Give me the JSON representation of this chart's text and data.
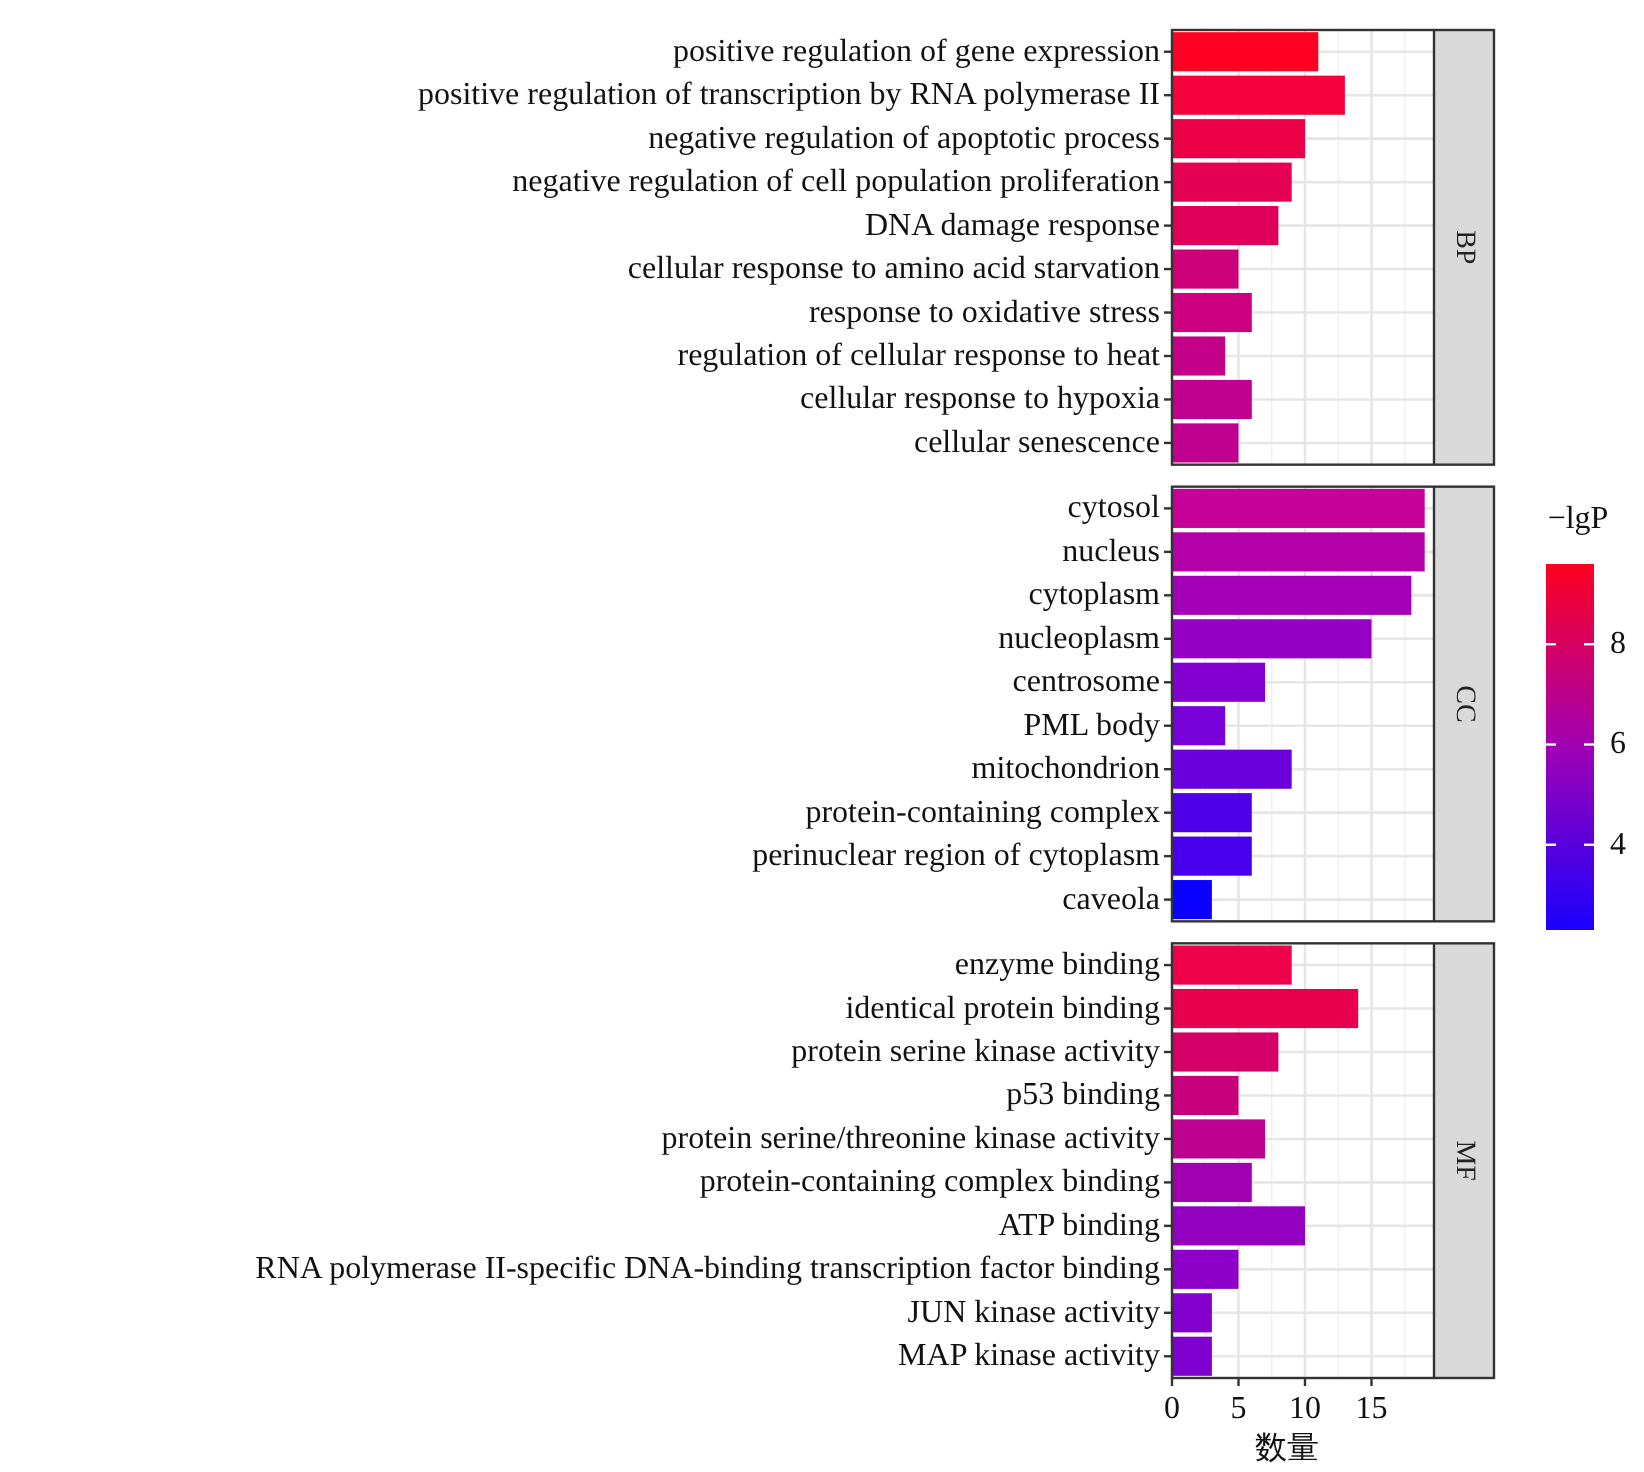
{
  "chart_data": [
    {
      "type": "bar",
      "orientation": "horizontal",
      "y2label": "BP",
      "categories": [
        "positive regulation of gene expression",
        "positive regulation of transcription by RNA polymerase II",
        "negative regulation of apoptotic process",
        "negative regulation of cell population proliferation",
        "DNA damage response",
        "cellular response to amino acid starvation",
        "response to oxidative stress",
        "regulation of cellular response to heat",
        "cellular response to hypoxia",
        "cellular senescence"
      ],
      "values": [
        11,
        13,
        10,
        9,
        8,
        5,
        6,
        4,
        6,
        5
      ],
      "colors": [
        "#ff0022",
        "#f5003a",
        "#ec0048",
        "#e40052",
        "#e0005a",
        "#cc0078",
        "#cc0080",
        "#c40088",
        "#c00090",
        "#c00090"
      ],
      "xlim": [
        0,
        19.7
      ],
      "xticks": [
        0,
        5,
        10,
        15
      ],
      "grid": true,
      "tick_labels": "y"
    },
    {
      "type": "bar",
      "orientation": "horizontal",
      "y2label": "CC",
      "categories": [
        "cytosol",
        "nucleus",
        "cytoplasm",
        "nucleoplasm",
        "centrosome",
        "PML body",
        "mitochondrion",
        "protein-containing complex",
        "perinuclear region of cytoplasm",
        "caveola"
      ],
      "values": [
        19,
        19,
        18,
        15,
        7,
        4,
        9,
        6,
        6,
        3
      ],
      "colors": [
        "#c8009a",
        "#b400a8",
        "#a400b8",
        "#9600c4",
        "#8200d0",
        "#7800d8",
        "#6c00dc",
        "#5000e8",
        "#4800ec",
        "#0a00ff"
      ],
      "xlim": [
        0,
        19.7
      ],
      "xticks": [
        0,
        5,
        10,
        15
      ],
      "grid": true,
      "tick_labels": "y",
      "clabel": "−lgP",
      "clim": [
        2.3,
        9.6
      ],
      "cticks": [
        4,
        6,
        8
      ]
    },
    {
      "type": "bar",
      "orientation": "horizontal",
      "y2label": "MF",
      "categories": [
        "enzyme binding",
        "identical protein binding",
        "protein serine kinase activity",
        "p53 binding",
        "protein serine/threonine kinase activity",
        "protein-containing complex binding",
        "ATP binding",
        "RNA polymerase II-specific DNA-binding transcription factor binding",
        "JUN kinase activity",
        "MAP kinase activity"
      ],
      "values": [
        9,
        14,
        8,
        5,
        7,
        6,
        10,
        5,
        3,
        3
      ],
      "colors": [
        "#ee004a",
        "#e8004e",
        "#d40068",
        "#c8007c",
        "#bc0090",
        "#a000b0",
        "#9400c0",
        "#8e00c8",
        "#8400cc",
        "#8000d0"
      ],
      "xlim": [
        0,
        19.7
      ],
      "xticks": [
        0,
        5,
        10,
        15
      ],
      "grid": true,
      "xlabel": "数量"
    }
  ]
}
